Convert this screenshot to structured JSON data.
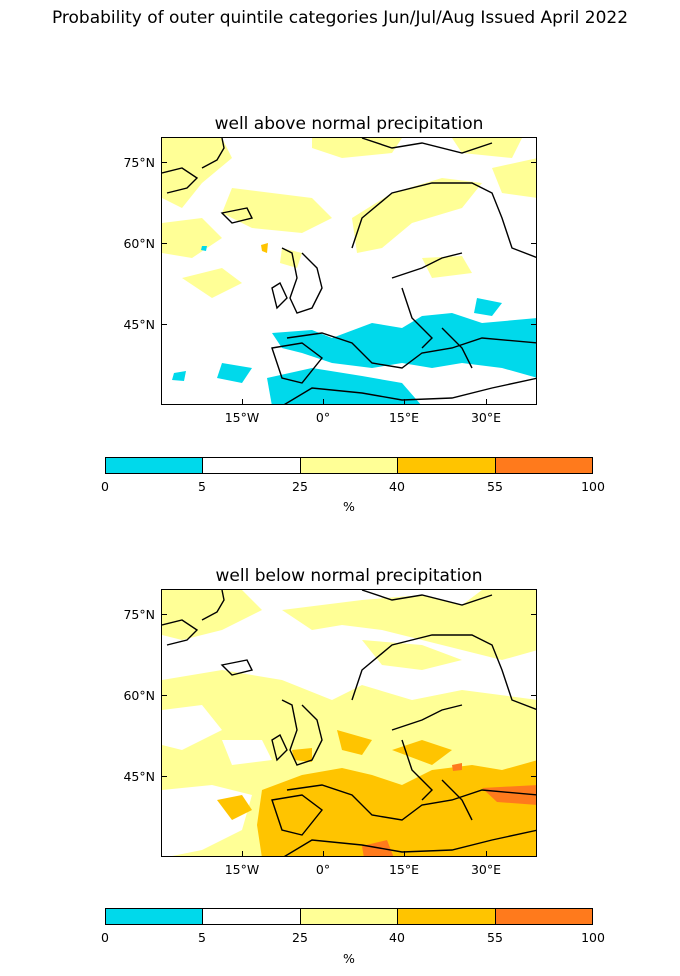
{
  "figure": {
    "suptitle": "Probability of outer quintile categories Jun/Jul/Aug Issued April 2022"
  },
  "panels": [
    {
      "title": "well above normal precipitation",
      "lat_ticks": [
        "75°N",
        "60°N",
        "45°N"
      ],
      "lon_ticks": [
        "15°W",
        "0°",
        "15°E",
        "30°E"
      ],
      "dominant_signal": "below 5% over Mediterranean (cyan), 25–40% over Scandinavia and North Atlantic (yellow)"
    },
    {
      "title": "well below normal precipitation",
      "lat_ticks": [
        "75°N",
        "60°N",
        "45°N"
      ],
      "lon_ticks": [
        "15°W",
        "0°",
        "15°E",
        "30°E"
      ],
      "dominant_signal": "40–55% over Mediterranean (orange-yellow), 55–100% patches over Turkey and North Africa"
    }
  ],
  "colorbar": {
    "ticks": [
      "0",
      "5",
      "25",
      "40",
      "55",
      "100"
    ],
    "unit": "%",
    "colors": [
      "#00d9eb",
      "#ffffff",
      "#ffff96",
      "#ffc400",
      "#ff7a1c"
    ]
  }
}
